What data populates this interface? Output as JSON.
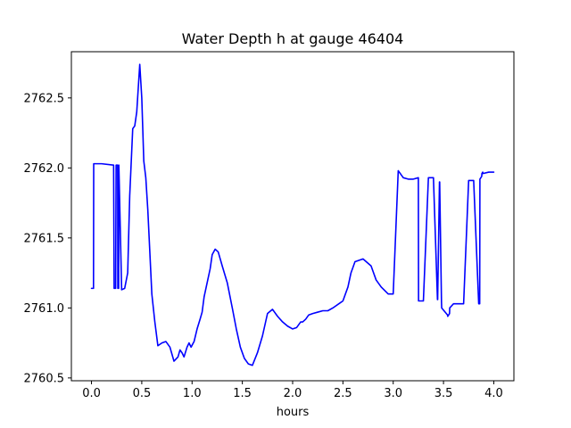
{
  "chart_data": {
    "type": "line",
    "title": "Water Depth h at gauge 46404",
    "xlabel": "hours",
    "ylabel": "",
    "xlim": [
      -0.2,
      4.2
    ],
    "ylim": [
      2760.48,
      2762.83
    ],
    "xticks": [
      0.0,
      0.5,
      1.0,
      1.5,
      2.0,
      2.5,
      3.0,
      3.5,
      4.0
    ],
    "xtick_labels": [
      "0.0",
      "0.5",
      "1.0",
      "1.5",
      "2.0",
      "2.5",
      "3.0",
      "3.5",
      "4.0"
    ],
    "yticks": [
      2760.5,
      2761.0,
      2761.5,
      2762.0,
      2762.5
    ],
    "ytick_labels": [
      "2760.5",
      "2761.0",
      "2761.5",
      "2762.0",
      "2762.5"
    ],
    "grid": false,
    "series": [
      {
        "color": "#0000ff",
        "x": [
          0.0,
          0.02,
          0.022,
          0.1,
          0.22,
          0.225,
          0.24,
          0.245,
          0.26,
          0.262,
          0.27,
          0.272,
          0.3,
          0.33,
          0.36,
          0.38,
          0.41,
          0.43,
          0.45,
          0.48,
          0.5,
          0.52,
          0.54,
          0.56,
          0.58,
          0.6,
          0.63,
          0.66,
          0.7,
          0.74,
          0.78,
          0.82,
          0.86,
          0.88,
          0.9,
          0.92,
          0.95,
          0.97,
          0.99,
          1.02,
          1.05,
          1.08,
          1.1,
          1.12,
          1.15,
          1.18,
          1.2,
          1.23,
          1.26,
          1.3,
          1.35,
          1.4,
          1.44,
          1.48,
          1.52,
          1.56,
          1.6,
          1.65,
          1.7,
          1.75,
          1.8,
          1.85,
          1.9,
          1.95,
          2.0,
          2.04,
          2.08,
          2.1,
          2.13,
          2.16,
          2.2,
          2.25,
          2.3,
          2.35,
          2.4,
          2.5,
          2.55,
          2.58,
          2.62,
          2.7,
          2.78,
          2.83,
          2.88,
          2.95,
          3.0,
          3.05,
          3.1,
          3.15,
          3.2,
          3.25,
          3.252,
          3.3,
          3.35,
          3.4,
          3.44,
          3.442,
          3.46,
          3.462,
          3.48,
          3.482,
          3.54,
          3.542,
          3.56,
          3.562,
          3.6,
          3.7,
          3.75,
          3.8,
          3.85,
          3.86,
          3.862,
          3.88,
          3.882,
          3.89,
          3.892,
          3.95,
          4.0
        ],
        "y": [
          2761.14,
          2761.14,
          2762.03,
          2762.03,
          2762.02,
          2761.14,
          2761.14,
          2762.02,
          2762.02,
          2761.14,
          2761.14,
          2762.02,
          2761.13,
          2761.14,
          2761.25,
          2761.8,
          2762.28,
          2762.3,
          2762.4,
          2762.74,
          2762.5,
          2762.05,
          2761.93,
          2761.7,
          2761.4,
          2761.1,
          2760.9,
          2760.73,
          2760.75,
          2760.76,
          2760.72,
          2760.62,
          2760.65,
          2760.7,
          2760.68,
          2760.65,
          2760.72,
          2760.75,
          2760.72,
          2760.76,
          2760.85,
          2760.92,
          2760.97,
          2761.08,
          2761.18,
          2761.28,
          2761.38,
          2761.42,
          2761.4,
          2761.3,
          2761.18,
          2761.0,
          2760.85,
          2760.72,
          2760.64,
          2760.6,
          2760.59,
          2760.68,
          2760.8,
          2760.96,
          2760.99,
          2760.94,
          2760.9,
          2760.87,
          2760.85,
          2760.86,
          2760.9,
          2760.9,
          2760.92,
          2760.95,
          2760.96,
          2760.97,
          2760.98,
          2760.98,
          2761.0,
          2761.05,
          2761.15,
          2761.25,
          2761.33,
          2761.35,
          2761.3,
          2761.2,
          2761.15,
          2761.1,
          2761.1,
          2761.98,
          2761.93,
          2761.92,
          2761.92,
          2761.93,
          2761.05,
          2761.05,
          2761.93,
          2761.93,
          2761.06,
          2761.06,
          2761.9,
          2761.9,
          2761.04,
          2761.0,
          2760.95,
          2760.94,
          2760.96,
          2761.0,
          2761.03,
          2761.03,
          2761.91,
          2761.91,
          2761.03,
          2761.03,
          2761.92,
          2761.94,
          2761.96,
          2761.97,
          2761.96,
          2761.97,
          2761.97
        ]
      }
    ]
  }
}
